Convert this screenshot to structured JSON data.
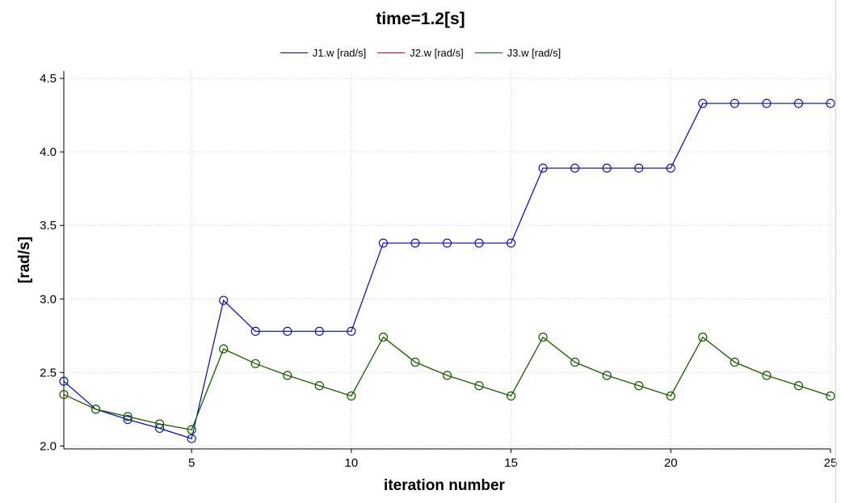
{
  "chart_data": {
    "type": "line",
    "title": "time=1.2[s]",
    "xlabel": "iteration number",
    "ylabel": "[rad/s]",
    "xlim": [
      1,
      25
    ],
    "ylim": [
      1.98,
      4.55
    ],
    "x_ticks": [
      5,
      10,
      15,
      20,
      25
    ],
    "y_ticks": [
      2.0,
      2.5,
      3.0,
      3.5,
      4.0,
      4.5
    ],
    "y_tick_labels": [
      "2.0",
      "2.5",
      "3.0",
      "3.5",
      "4.0",
      "4.5"
    ],
    "grid": true,
    "legend_position": "top-center",
    "x": [
      1,
      2,
      3,
      4,
      5,
      6,
      7,
      8,
      9,
      10,
      11,
      12,
      13,
      14,
      15,
      16,
      17,
      18,
      19,
      20,
      21,
      22,
      23,
      24,
      25
    ],
    "series": [
      {
        "name": "J1.w [rad/s]",
        "color": "#0000cc",
        "values": [
          2.44,
          2.25,
          2.18,
          2.12,
          2.05,
          2.99,
          2.78,
          2.78,
          2.78,
          2.78,
          3.38,
          3.38,
          3.38,
          3.38,
          3.38,
          3.89,
          3.89,
          3.89,
          3.89,
          3.89,
          4.33,
          4.33,
          4.33,
          4.33,
          4.33
        ]
      },
      {
        "name": "J2.w [rad/s]",
        "color": "#e00000",
        "values": [
          2.35,
          2.25,
          2.2,
          2.15,
          2.11,
          2.66,
          2.56,
          2.48,
          2.41,
          2.34,
          2.74,
          2.57,
          2.48,
          2.41,
          2.34,
          2.74,
          2.57,
          2.48,
          2.41,
          2.34,
          2.74,
          2.57,
          2.48,
          2.41,
          2.34
        ]
      },
      {
        "name": "J3.w [rad/s]",
        "color": "#007000",
        "values": [
          2.35,
          2.25,
          2.2,
          2.15,
          2.11,
          2.66,
          2.56,
          2.48,
          2.41,
          2.34,
          2.74,
          2.57,
          2.48,
          2.41,
          2.34,
          2.74,
          2.57,
          2.48,
          2.41,
          2.34,
          2.74,
          2.57,
          2.48,
          2.41,
          2.34
        ]
      }
    ]
  }
}
